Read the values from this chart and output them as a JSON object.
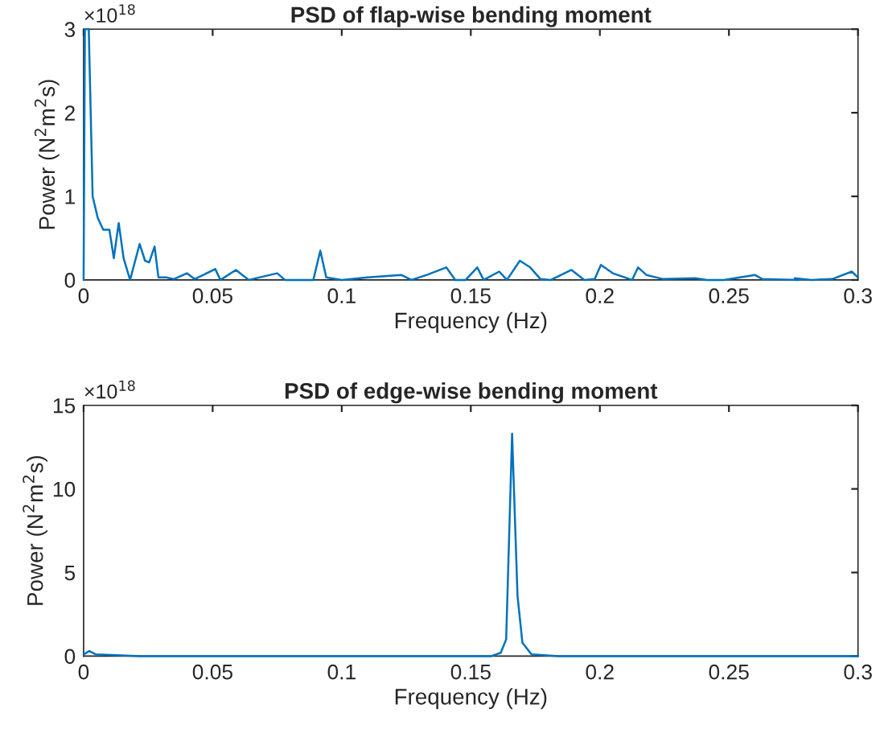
{
  "chart_data": [
    {
      "type": "line",
      "title": "PSD of flap-wise bending moment",
      "xlabel": "Frequency (Hz)",
      "ylabel": "Power (N$^{2}$m$^{2}$s)",
      "annotations": [
        "×10$^{18}$"
      ],
      "series": [
        {
          "color": "#0072bd",
          "x": [
            0,
            0.0005,
            0.002,
            0.0035,
            0.0055,
            0.0076,
            0.01,
            0.0117,
            0.0136,
            0.0155,
            0.018,
            0.0217,
            0.0238,
            0.0254,
            0.0275,
            0.029,
            0.032,
            0.035,
            0.04,
            0.043,
            0.051,
            0.053,
            0.059,
            0.064,
            0.075,
            0.078,
            0.089,
            0.0917,
            0.094,
            0.1,
            0.11,
            0.123,
            0.127,
            0.133,
            0.1405,
            0.144,
            0.148,
            0.1525,
            0.155,
            0.161,
            0.164,
            0.169,
            0.173,
            0.177,
            0.181,
            0.189,
            0.194,
            0.198,
            0.2004,
            0.205,
            0.2125,
            0.2148,
            0.218,
            0.2246,
            0.237,
            0.2415,
            0.248,
            0.26,
            0.263,
            0.277,
            0.2755,
            0.282,
            0.29,
            0.2976,
            0.3
          ],
          "values": [
            0,
            3,
            3,
            1.0,
            0.74,
            0.6,
            0.6,
            0.26,
            0.68,
            0.26,
            0,
            0.43,
            0.23,
            0.21,
            0.4,
            0.03,
            0.03,
            0.01,
            0.08,
            0.01,
            0.13,
            0,
            0.12,
            0,
            0.08,
            0,
            0,
            0.35,
            0.03,
            0,
            0.03,
            0.06,
            0,
            0.06,
            0.15,
            0,
            0,
            0.15,
            0,
            0.1,
            0,
            0.23,
            0.15,
            0.01,
            0,
            0.12,
            0,
            0.01,
            0.18,
            0.08,
            0,
            0.15,
            0.06,
            0.01,
            0.02,
            0,
            0,
            0.06,
            0.01,
            0,
            0.02,
            0,
            0.01,
            0.1,
            0.03
          ]
        }
      ],
      "xlim": [
        0,
        0.3
      ],
      "xticks": [
        0,
        0.05,
        0.1,
        0.15,
        0.2,
        0.25,
        0.3
      ],
      "ylim": [
        0,
        3
      ],
      "yticks": [
        0,
        1,
        2,
        3
      ]
    },
    {
      "type": "line",
      "title": "PSD of edge-wise bending moment",
      "xlabel": "Frequency (Hz)",
      "ylabel": "Power (N$^{2}$m$^{2}$s)",
      "annotations": [
        "×10$^{18}$"
      ],
      "series": [
        {
          "color": "#0072bd",
          "x": [
            0,
            0.0022,
            0.0048,
            0.022,
            0.08,
            0.158,
            0.1616,
            0.1637,
            0.166,
            0.1681,
            0.17,
            0.1735,
            0.184,
            0.3
          ],
          "values": [
            0.1,
            0.3,
            0.1,
            0,
            0,
            0,
            0.2,
            1,
            13.3,
            3.6,
            0.8,
            0.1,
            0,
            0
          ]
        }
      ],
      "xlim": [
        0,
        0.3
      ],
      "xticks": [
        0,
        0.05,
        0.1,
        0.15,
        0.2,
        0.25,
        0.3
      ],
      "ylim": [
        0,
        15
      ],
      "yticks": [
        0,
        5,
        10,
        15
      ]
    }
  ]
}
